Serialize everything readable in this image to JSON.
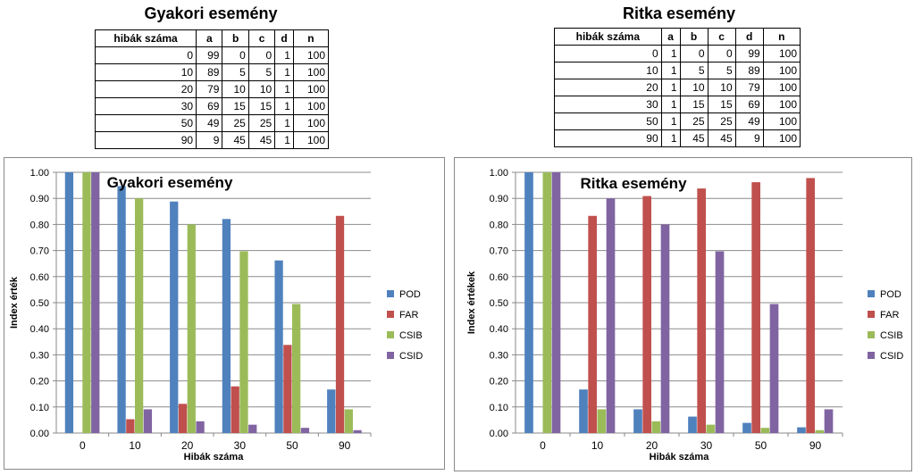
{
  "left_panel": {
    "title": "Gyakori esemény",
    "table": {
      "headers": [
        "hibák száma",
        "a",
        "b",
        "c",
        "d",
        "n"
      ],
      "rows": [
        [
          "0",
          "99",
          "0",
          "0",
          "1",
          "100"
        ],
        [
          "10",
          "89",
          "5",
          "5",
          "1",
          "100"
        ],
        [
          "20",
          "79",
          "10",
          "10",
          "1",
          "100"
        ],
        [
          "30",
          "69",
          "15",
          "15",
          "1",
          "100"
        ],
        [
          "50",
          "49",
          "25",
          "25",
          "1",
          "100"
        ],
        [
          "90",
          "9",
          "45",
          "45",
          "1",
          "100"
        ]
      ]
    }
  },
  "right_panel": {
    "title": "Ritka esemény",
    "table": {
      "headers": [
        "hibák száma",
        "a",
        "b",
        "c",
        "d",
        "n"
      ],
      "rows": [
        [
          "0",
          "1",
          "0",
          "0",
          "99",
          "100"
        ],
        [
          "10",
          "1",
          "5",
          "5",
          "89",
          "100"
        ],
        [
          "20",
          "1",
          "10",
          "10",
          "79",
          "100"
        ],
        [
          "30",
          "1",
          "15",
          "15",
          "69",
          "100"
        ],
        [
          "50",
          "1",
          "25",
          "25",
          "49",
          "100"
        ],
        [
          "90",
          "1",
          "45",
          "45",
          "9",
          "100"
        ]
      ]
    }
  },
  "chart_data": [
    {
      "type": "bar",
      "title": "Gyakori esemény",
      "xlabel": "Hibák száma",
      "ylabel": "Index érték",
      "ylim": [
        0,
        1
      ],
      "ytick_labels": [
        "0.00",
        "0.10",
        "0.20",
        "0.30",
        "0.40",
        "0.50",
        "0.60",
        "0.70",
        "0.80",
        "0.90",
        "1.00"
      ],
      "grid": true,
      "legend_position": "right",
      "categories": [
        "0",
        "10",
        "20",
        "30",
        "50",
        "90"
      ],
      "series": [
        {
          "name": "POD",
          "color": "#4f81bd",
          "values": [
            1.0,
            0.947,
            0.888,
            0.821,
            0.662,
            0.167
          ]
        },
        {
          "name": "FAR",
          "color": "#c0504d",
          "values": [
            0.0,
            0.053,
            0.112,
            0.179,
            0.338,
            0.833
          ]
        },
        {
          "name": "CSIB",
          "color": "#9bbb59",
          "values": [
            1.0,
            0.9,
            0.8,
            0.697,
            0.495,
            0.091
          ]
        },
        {
          "name": "CSID",
          "color": "#8064a2",
          "values": [
            1.0,
            0.091,
            0.045,
            0.032,
            0.02,
            0.011
          ]
        }
      ]
    },
    {
      "type": "bar",
      "title": "Ritka esemény",
      "xlabel": "Hibák száma",
      "ylabel": "Index értékek",
      "ylim": [
        0,
        1
      ],
      "ytick_labels": [
        "0.00",
        "0.10",
        "0.20",
        "0.30",
        "0.40",
        "0.50",
        "0.60",
        "0.70",
        "0.80",
        "0.90",
        "1.00"
      ],
      "grid": true,
      "legend_position": "right",
      "categories": [
        "0",
        "10",
        "20",
        "30",
        "50",
        "90"
      ],
      "series": [
        {
          "name": "POD",
          "color": "#4f81bd",
          "values": [
            1.0,
            0.167,
            0.091,
            0.063,
            0.039,
            0.022
          ]
        },
        {
          "name": "FAR",
          "color": "#c0504d",
          "values": [
            0.0,
            0.833,
            0.909,
            0.938,
            0.962,
            0.978
          ]
        },
        {
          "name": "CSIB",
          "color": "#9bbb59",
          "values": [
            1.0,
            0.091,
            0.045,
            0.032,
            0.02,
            0.011
          ]
        },
        {
          "name": "CSID",
          "color": "#8064a2",
          "values": [
            1.0,
            0.9,
            0.8,
            0.697,
            0.495,
            0.091
          ]
        }
      ]
    }
  ]
}
